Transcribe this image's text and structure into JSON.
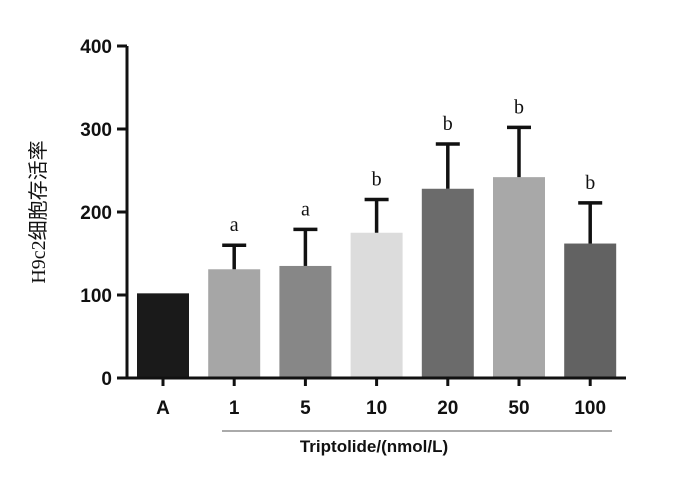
{
  "chart_data": {
    "type": "bar",
    "categories": [
      "A",
      "1",
      "5",
      "10",
      "20",
      "50",
      "100"
    ],
    "values": [
      102,
      131,
      135,
      175,
      228,
      242,
      162
    ],
    "errors": [
      0,
      29,
      44,
      40,
      54,
      60,
      49
    ],
    "annotations": [
      "",
      "a",
      "a",
      "b",
      "b",
      "b",
      "b"
    ],
    "bar_colors": [
      "#1a1a1a",
      "#a6a6a6",
      "#878787",
      "#dcdcdc",
      "#6b6b6b",
      "#a8a8a8",
      "#626262"
    ],
    "error_color": "#111111",
    "ylabel": "H9c2细胞存活率",
    "xlabel": "Triptolide/(nmol/L)",
    "ylim": [
      0,
      400
    ],
    "yticks": [
      0,
      100,
      200,
      300,
      400
    ]
  }
}
